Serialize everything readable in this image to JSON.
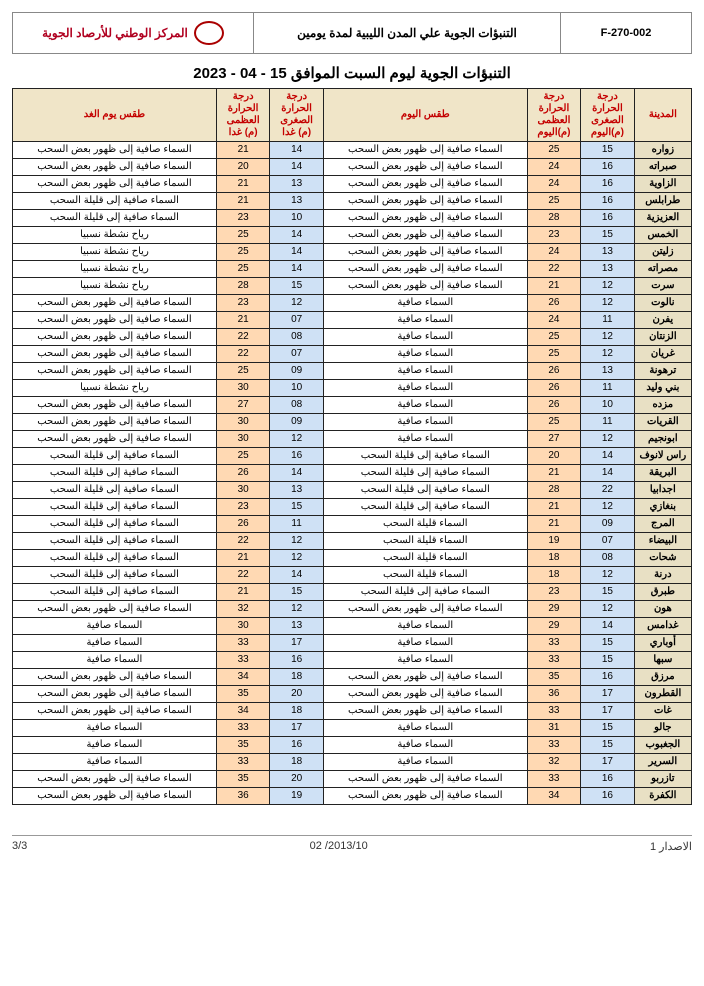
{
  "header": {
    "form_code": "F-270-002",
    "doc_title": "التنبؤات الجوية علي المدن الليبية لمدة يومين",
    "org_name": "المركز الوطني للأرصاد الجوية"
  },
  "main_title": "التنبؤات الجوية ليوم السبت  الموافق 15 - 04 - 2023",
  "table": {
    "headers": {
      "city": "المدينة",
      "min_today": "درجة الحرارة الصغرى (م)اليوم",
      "max_today": "درجة الحرارة العظمى (م)اليوم",
      "wx_today": "طقس اليوم",
      "min_tmrw": "درجة الحرارة الصغرى (م) غدا",
      "max_tmrw": "درجة الحرارة العظمى (م) غدا",
      "wx_tmrw": "طقس يوم الغد"
    },
    "colors": {
      "header_bg": "#f0e5c8",
      "header_text": "#c40000",
      "city_bg": "#e8e0c4",
      "min_bg": "#cfe1f5",
      "max_bg": "#ffd9b3",
      "border": "#222222"
    },
    "rows": [
      {
        "city": "زواره",
        "min_t": "15",
        "max_t": "25",
        "wx_t": "السماء صافية إلى ظهور بعض السحب",
        "min_m": "14",
        "max_m": "21",
        "wx_m": "السماء صافية إلى ظهور بعض السحب"
      },
      {
        "city": "صبراته",
        "min_t": "16",
        "max_t": "24",
        "wx_t": "السماء صافية إلى ظهور بعض السحب",
        "min_m": "14",
        "max_m": "20",
        "wx_m": "السماء صافية إلى ظهور بعض السحب"
      },
      {
        "city": "الزاوية",
        "min_t": "16",
        "max_t": "24",
        "wx_t": "السماء صافية إلى ظهور بعض السحب",
        "min_m": "13",
        "max_m": "21",
        "wx_m": "السماء صافية إلى ظهور بعض السحب"
      },
      {
        "city": "طرابلس",
        "min_t": "16",
        "max_t": "25",
        "wx_t": "السماء صافية إلى ظهور بعض السحب",
        "min_m": "13",
        "max_m": "21",
        "wx_m": "السماء صافية إلى قليلة السحب"
      },
      {
        "city": "العزيزية",
        "min_t": "16",
        "max_t": "28",
        "wx_t": "السماء صافية إلى ظهور بعض السحب",
        "min_m": "10",
        "max_m": "23",
        "wx_m": "السماء صافية إلى قليلة السحب"
      },
      {
        "city": "الخمس",
        "min_t": "15",
        "max_t": "23",
        "wx_t": "السماء صافية إلى ظهور بعض السحب",
        "min_m": "14",
        "max_m": "25",
        "wx_m": "رياح نشطة نسبيا"
      },
      {
        "city": "زليتن",
        "min_t": "13",
        "max_t": "24",
        "wx_t": "السماء صافية إلى ظهور بعض السحب",
        "min_m": "14",
        "max_m": "25",
        "wx_m": "رياح نشطة نسبيا"
      },
      {
        "city": "مصراته",
        "min_t": "13",
        "max_t": "22",
        "wx_t": "السماء صافية إلى ظهور بعض السحب",
        "min_m": "14",
        "max_m": "25",
        "wx_m": "رياح نشطة نسبيا"
      },
      {
        "city": "سرت",
        "min_t": "12",
        "max_t": "21",
        "wx_t": "السماء صافية إلى ظهور بعض السحب",
        "min_m": "15",
        "max_m": "28",
        "wx_m": "رياح نشطة نسبيا"
      },
      {
        "city": "نالوت",
        "min_t": "12",
        "max_t": "26",
        "wx_t": "السماء صافية",
        "min_m": "12",
        "max_m": "23",
        "wx_m": "السماء صافية إلى ظهور بعض السحب"
      },
      {
        "city": "يفرن",
        "min_t": "11",
        "max_t": "24",
        "wx_t": "السماء صافية",
        "min_m": "07",
        "max_m": "21",
        "wx_m": "السماء صافية إلى ظهور بعض السحب"
      },
      {
        "city": "الزنتان",
        "min_t": "12",
        "max_t": "25",
        "wx_t": "السماء صافية",
        "min_m": "08",
        "max_m": "22",
        "wx_m": "السماء صافية إلى ظهور بعض السحب"
      },
      {
        "city": "غريان",
        "min_t": "12",
        "max_t": "25",
        "wx_t": "السماء صافية",
        "min_m": "07",
        "max_m": "22",
        "wx_m": "السماء صافية إلى ظهور بعض السحب"
      },
      {
        "city": "ترهونة",
        "min_t": "13",
        "max_t": "26",
        "wx_t": "السماء صافية",
        "min_m": "09",
        "max_m": "25",
        "wx_m": "السماء صافية إلى ظهور بعض السحب"
      },
      {
        "city": "بني وليد",
        "min_t": "11",
        "max_t": "26",
        "wx_t": "السماء صافية",
        "min_m": "10",
        "max_m": "30",
        "wx_m": "رياح نشطة نسبيا"
      },
      {
        "city": "مزده",
        "min_t": "10",
        "max_t": "26",
        "wx_t": "السماء صافية",
        "min_m": "08",
        "max_m": "27",
        "wx_m": "السماء صافية إلى ظهور بعض السحب"
      },
      {
        "city": "القريات",
        "min_t": "11",
        "max_t": "25",
        "wx_t": "السماء صافية",
        "min_m": "09",
        "max_m": "30",
        "wx_m": "السماء صافية إلى ظهور بعض السحب"
      },
      {
        "city": "ابونجيم",
        "min_t": "12",
        "max_t": "27",
        "wx_t": "السماء صافية",
        "min_m": "12",
        "max_m": "30",
        "wx_m": "السماء صافية إلى ظهور بعض السحب"
      },
      {
        "city": "راس لانوف",
        "min_t": "14",
        "max_t": "20",
        "wx_t": "السماء صافية إلى قليلة السحب",
        "min_m": "16",
        "max_m": "25",
        "wx_m": "السماء صافية إلى قليلة السحب"
      },
      {
        "city": "البريقة",
        "min_t": "14",
        "max_t": "21",
        "wx_t": "السماء صافية إلى قليلة السحب",
        "min_m": "14",
        "max_m": "26",
        "wx_m": "السماء صافية إلى قليلة السحب"
      },
      {
        "city": "اجدابيا",
        "min_t": "22",
        "max_t": "28",
        "wx_t": "السماء صافية إلى قليلة السحب",
        "min_m": "13",
        "max_m": "30",
        "wx_m": "السماء صافية إلى قليلة السحب"
      },
      {
        "city": "بنغازي",
        "min_t": "12",
        "max_t": "21",
        "wx_t": "السماء صافية إلى قليلة السحب",
        "min_m": "15",
        "max_m": "23",
        "wx_m": "السماء صافية إلى قليلة السحب"
      },
      {
        "city": "المرج",
        "min_t": "09",
        "max_t": "21",
        "wx_t": "السماء قليلة السحب",
        "min_m": "11",
        "max_m": "26",
        "wx_m": "السماء صافية إلى قليلة السحب"
      },
      {
        "city": "البيضاء",
        "min_t": "07",
        "max_t": "19",
        "wx_t": "السماء قليلة السحب",
        "min_m": "12",
        "max_m": "22",
        "wx_m": "السماء صافية إلى قليلة السحب"
      },
      {
        "city": "شحات",
        "min_t": "08",
        "max_t": "18",
        "wx_t": "السماء قليلة السحب",
        "min_m": "12",
        "max_m": "21",
        "wx_m": "السماء صافية إلى قليلة السحب"
      },
      {
        "city": "درنة",
        "min_t": "12",
        "max_t": "18",
        "wx_t": "السماء قليلة السحب",
        "min_m": "14",
        "max_m": "22",
        "wx_m": "السماء صافية إلى قليلة السحب"
      },
      {
        "city": "طبرق",
        "min_t": "15",
        "max_t": "23",
        "wx_t": "السماء صافية إلى قليلة السحب",
        "min_m": "15",
        "max_m": "21",
        "wx_m": "السماء صافية إلى قليلة السحب"
      },
      {
        "city": "هون",
        "min_t": "12",
        "max_t": "29",
        "wx_t": "السماء صافية إلى ظهور بعض السحب",
        "min_m": "12",
        "max_m": "32",
        "wx_m": "السماء صافية إلى ظهور بعض السحب"
      },
      {
        "city": "غدامس",
        "min_t": "14",
        "max_t": "29",
        "wx_t": "السماء صافية",
        "min_m": "13",
        "max_m": "30",
        "wx_m": "السماء صافية"
      },
      {
        "city": "أوباري",
        "min_t": "15",
        "max_t": "33",
        "wx_t": "السماء صافية",
        "min_m": "17",
        "max_m": "33",
        "wx_m": "السماء صافية"
      },
      {
        "city": "سبها",
        "min_t": "15",
        "max_t": "33",
        "wx_t": "السماء صافية",
        "min_m": "16",
        "max_m": "33",
        "wx_m": "السماء صافية"
      },
      {
        "city": "مرزق",
        "min_t": "16",
        "max_t": "35",
        "wx_t": "السماء صافية إلى ظهور بعض السحب",
        "min_m": "18",
        "max_m": "34",
        "wx_m": "السماء صافية إلى ظهور بعض السحب"
      },
      {
        "city": "القطرون",
        "min_t": "17",
        "max_t": "36",
        "wx_t": "السماء صافية إلى ظهور بعض السحب",
        "min_m": "20",
        "max_m": "35",
        "wx_m": "السماء صافية إلى ظهور بعض السحب"
      },
      {
        "city": "غات",
        "min_t": "17",
        "max_t": "33",
        "wx_t": "السماء صافية إلى ظهور بعض السحب",
        "min_m": "18",
        "max_m": "34",
        "wx_m": "السماء صافية إلى ظهور بعض السحب"
      },
      {
        "city": "جالو",
        "min_t": "15",
        "max_t": "31",
        "wx_t": "السماء صافية",
        "min_m": "17",
        "max_m": "33",
        "wx_m": "السماء صافية"
      },
      {
        "city": "الجغبوب",
        "min_t": "15",
        "max_t": "33",
        "wx_t": "السماء صافية",
        "min_m": "16",
        "max_m": "35",
        "wx_m": "السماء صافية"
      },
      {
        "city": "السرير",
        "min_t": "17",
        "max_t": "32",
        "wx_t": "السماء صافية",
        "min_m": "18",
        "max_m": "33",
        "wx_m": "السماء صافية"
      },
      {
        "city": "تازربو",
        "min_t": "16",
        "max_t": "33",
        "wx_t": "السماء صافية إلى ظهور بعض السحب",
        "min_m": "20",
        "max_m": "35",
        "wx_m": "السماء صافية إلى ظهور بعض السحب"
      },
      {
        "city": "الكفرة",
        "min_t": "16",
        "max_t": "34",
        "wx_t": "السماء صافية إلى ظهور بعض السحب",
        "min_m": "19",
        "max_m": "36",
        "wx_m": "السماء صافية إلى ظهور بعض السحب"
      }
    ]
  },
  "footer": {
    "issue": "الاصدار  1",
    "date": "2013/10/ 02",
    "page": "3/3"
  }
}
